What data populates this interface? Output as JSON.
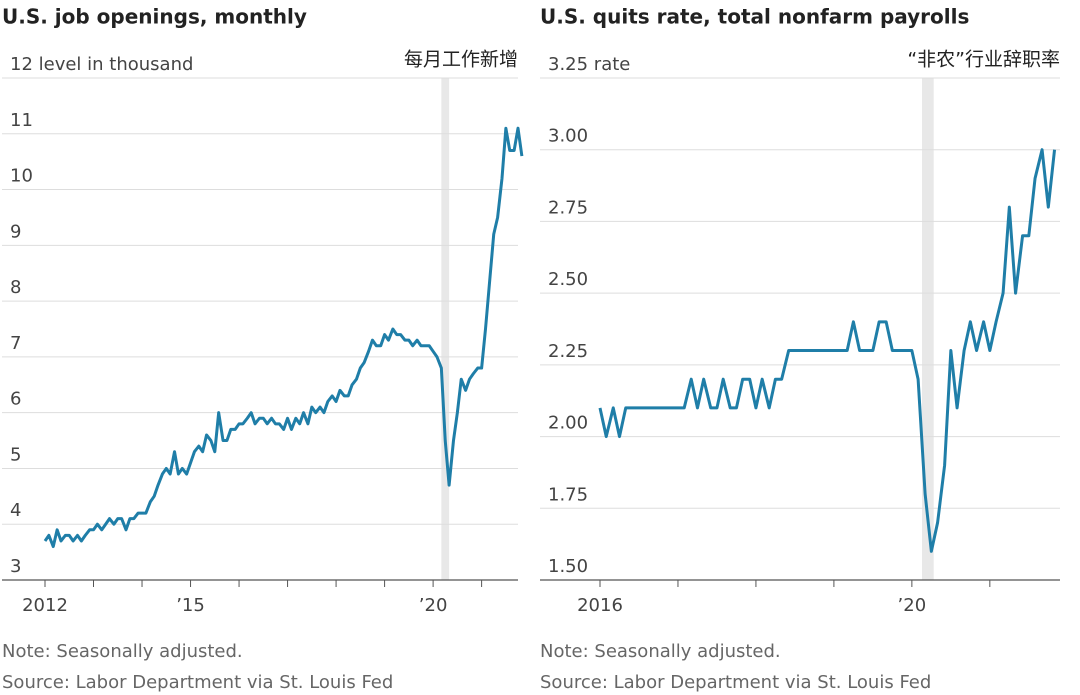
{
  "chart_data": [
    {
      "type": "line",
      "title": "U.S. job openings, monthly",
      "annotation": "每月工作新增",
      "note": "Note: Seasonally adjusted.",
      "source": "Source: Labor Department via St. Louis Fed",
      "ylim": [
        3,
        12
      ],
      "yticks": [
        3,
        4,
        5,
        6,
        7,
        8,
        9,
        10,
        11,
        {
          "value": 12,
          "label": "12 level in thousand"
        }
      ],
      "xlim": [
        2012,
        2021.75
      ],
      "xticks": [
        2012,
        {
          "value": 2015,
          "label": "’15"
        },
        {
          "value": 2020,
          "label": "’20"
        }
      ],
      "xminor": [
        2013,
        2014,
        2016,
        2017,
        2018,
        2019,
        2021
      ],
      "shade": [
        2020.17,
        2020.33
      ],
      "grid": true,
      "x": [
        2012.0,
        2012.08,
        2012.17,
        2012.25,
        2012.33,
        2012.42,
        2012.5,
        2012.58,
        2012.67,
        2012.75,
        2012.83,
        2012.92,
        2013.0,
        2013.08,
        2013.17,
        2013.25,
        2013.33,
        2013.42,
        2013.5,
        2013.58,
        2013.67,
        2013.75,
        2013.83,
        2013.92,
        2014.0,
        2014.08,
        2014.17,
        2014.25,
        2014.33,
        2014.42,
        2014.5,
        2014.58,
        2014.67,
        2014.75,
        2014.83,
        2014.92,
        2015.0,
        2015.08,
        2015.17,
        2015.25,
        2015.33,
        2015.42,
        2015.5,
        2015.58,
        2015.67,
        2015.75,
        2015.83,
        2015.92,
        2016.0,
        2016.08,
        2016.17,
        2016.25,
        2016.33,
        2016.42,
        2016.5,
        2016.58,
        2016.67,
        2016.75,
        2016.83,
        2016.92,
        2017.0,
        2017.08,
        2017.17,
        2017.25,
        2017.33,
        2017.42,
        2017.5,
        2017.58,
        2017.67,
        2017.75,
        2017.83,
        2017.92,
        2018.0,
        2018.08,
        2018.17,
        2018.25,
        2018.33,
        2018.42,
        2018.5,
        2018.58,
        2018.67,
        2018.75,
        2018.83,
        2018.92,
        2019.0,
        2019.08,
        2019.17,
        2019.25,
        2019.33,
        2019.42,
        2019.5,
        2019.58,
        2019.67,
        2019.75,
        2019.83,
        2019.92,
        2020.0,
        2020.08,
        2020.17,
        2020.25,
        2020.33,
        2020.42,
        2020.5,
        2020.58,
        2020.67,
        2020.75,
        2020.83,
        2020.92,
        2021.0,
        2021.08,
        2021.17,
        2021.25,
        2021.33,
        2021.42,
        2021.5,
        2021.58,
        2021.67,
        2021.75,
        2021.83
      ],
      "series": [
        {
          "color": "#1f7ea8",
          "values": [
            3.7,
            3.8,
            3.6,
            3.9,
            3.7,
            3.8,
            3.8,
            3.7,
            3.8,
            3.7,
            3.8,
            3.9,
            3.9,
            4.0,
            3.9,
            4.0,
            4.1,
            4.0,
            4.1,
            4.1,
            3.9,
            4.1,
            4.1,
            4.2,
            4.2,
            4.2,
            4.4,
            4.5,
            4.7,
            4.9,
            5.0,
            4.9,
            5.3,
            4.9,
            5.0,
            4.9,
            5.1,
            5.3,
            5.4,
            5.3,
            5.6,
            5.5,
            5.3,
            6.0,
            5.5,
            5.5,
            5.7,
            5.7,
            5.8,
            5.8,
            5.9,
            6.0,
            5.8,
            5.9,
            5.9,
            5.8,
            5.9,
            5.8,
            5.8,
            5.7,
            5.9,
            5.7,
            5.9,
            5.8,
            6.0,
            5.8,
            6.1,
            6.0,
            6.1,
            6.0,
            6.2,
            6.3,
            6.2,
            6.4,
            6.3,
            6.3,
            6.5,
            6.6,
            6.8,
            6.9,
            7.1,
            7.3,
            7.2,
            7.2,
            7.4,
            7.3,
            7.5,
            7.4,
            7.4,
            7.3,
            7.3,
            7.2,
            7.3,
            7.2,
            7.2,
            7.2,
            7.1,
            7.0,
            6.8,
            5.5,
            4.7,
            5.5,
            6.0,
            6.6,
            6.4,
            6.6,
            6.7,
            6.8,
            6.8,
            7.5,
            8.4,
            9.2,
            9.5,
            10.2,
            11.1,
            10.7,
            10.7,
            11.1,
            10.6
          ]
        }
      ]
    },
    {
      "type": "line",
      "title": "U.S. quits rate, total nonfarm payrolls",
      "annotation": "“非农”行业辞职率",
      "note": "Note: Seasonally adjusted.",
      "source": "Source: Labor Department via St. Louis Fed",
      "ylim": [
        1.5,
        3.25
      ],
      "yticks": [
        {
          "value": 1.5,
          "label": "1.50"
        },
        1.75,
        {
          "value": 2,
          "label": "2.00"
        },
        2.25,
        {
          "value": 2.5,
          "label": "2.50"
        },
        2.75,
        {
          "value": 3,
          "label": "3.00"
        },
        {
          "value": 3.25,
          "label": "3.25 rate"
        }
      ],
      "xlim": [
        2016,
        2021.9
      ],
      "xticks": [
        2016,
        {
          "value": 2020,
          "label": "’20"
        }
      ],
      "xminor": [
        2017,
        2018,
        2019,
        2021
      ],
      "shade": [
        2020.13,
        2020.28
      ],
      "grid": true,
      "x": [
        2016.0,
        2016.08,
        2016.17,
        2016.25,
        2016.33,
        2016.42,
        2016.5,
        2016.58,
        2016.67,
        2016.75,
        2016.83,
        2016.92,
        2017.0,
        2017.08,
        2017.17,
        2017.25,
        2017.33,
        2017.42,
        2017.5,
        2017.58,
        2017.67,
        2017.75,
        2017.83,
        2017.92,
        2018.0,
        2018.08,
        2018.17,
        2018.25,
        2018.33,
        2018.42,
        2018.5,
        2018.58,
        2018.67,
        2018.75,
        2018.83,
        2018.92,
        2019.0,
        2019.08,
        2019.17,
        2019.25,
        2019.33,
        2019.42,
        2019.5,
        2019.58,
        2019.67,
        2019.75,
        2019.83,
        2019.92,
        2020.0,
        2020.08,
        2020.17,
        2020.25,
        2020.33,
        2020.42,
        2020.5,
        2020.58,
        2020.67,
        2020.75,
        2020.83,
        2020.92,
        2021.0,
        2021.08,
        2021.17,
        2021.25,
        2021.33,
        2021.42,
        2021.5,
        2021.58,
        2021.67,
        2021.75,
        2021.83
      ],
      "series": [
        {
          "color": "#1f7ea8",
          "values": [
            2.1,
            2.0,
            2.1,
            2.0,
            2.1,
            2.1,
            2.1,
            2.1,
            2.1,
            2.1,
            2.1,
            2.1,
            2.1,
            2.1,
            2.2,
            2.1,
            2.2,
            2.1,
            2.1,
            2.2,
            2.1,
            2.1,
            2.2,
            2.2,
            2.1,
            2.2,
            2.1,
            2.2,
            2.2,
            2.3,
            2.3,
            2.3,
            2.3,
            2.3,
            2.3,
            2.3,
            2.3,
            2.3,
            2.3,
            2.4,
            2.3,
            2.3,
            2.3,
            2.4,
            2.4,
            2.3,
            2.3,
            2.3,
            2.3,
            2.2,
            1.8,
            1.6,
            1.7,
            1.9,
            2.3,
            2.1,
            2.3,
            2.4,
            2.3,
            2.4,
            2.3,
            2.4,
            2.5,
            2.8,
            2.5,
            2.7,
            2.7,
            2.9,
            3.0,
            2.8,
            3.0
          ]
        }
      ]
    }
  ]
}
